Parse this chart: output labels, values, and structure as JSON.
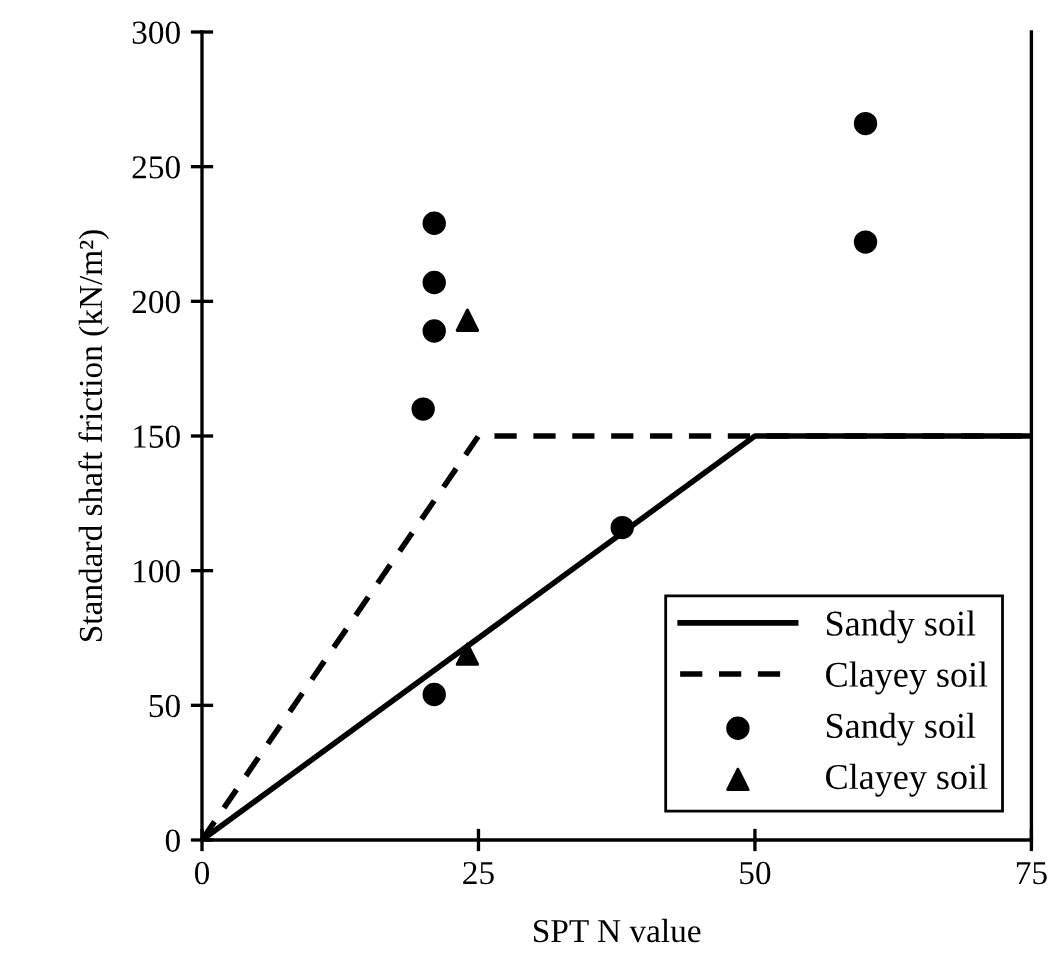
{
  "chart_data": {
    "type": "line",
    "xlabel": "SPT N value",
    "ylabel": "Standard shaft friction (kN/m²)",
    "xlim": [
      0,
      75
    ],
    "ylim": [
      0,
      300
    ],
    "xticks": [
      0,
      25,
      50,
      75
    ],
    "yticks": [
      0,
      50,
      100,
      150,
      200,
      250,
      300
    ],
    "grid": false,
    "legend": "bottom right",
    "series": [
      {
        "name": "Sandy soil",
        "line_style": "solid",
        "marker": "none",
        "color": "#000000",
        "x": [
          0,
          50,
          75
        ],
        "values": [
          0,
          150,
          150
        ]
      },
      {
        "name": "Clayey soil",
        "line_style": "dashed",
        "marker": "none",
        "color": "#000000",
        "x": [
          0,
          25,
          75
        ],
        "values": [
          0,
          150,
          150
        ]
      },
      {
        "name": "Sandy soil",
        "type": "scatter",
        "marker": "circle",
        "color": "#000000",
        "x": [
          21,
          21,
          21,
          20,
          21,
          38,
          60,
          60
        ],
        "values": [
          229,
          207,
          189,
          160,
          54,
          116,
          266,
          222
        ]
      },
      {
        "name": "Clayey soil",
        "type": "scatter",
        "marker": "triangle",
        "color": "#000000",
        "x": [
          24,
          24
        ],
        "values": [
          193,
          69
        ]
      }
    ]
  }
}
